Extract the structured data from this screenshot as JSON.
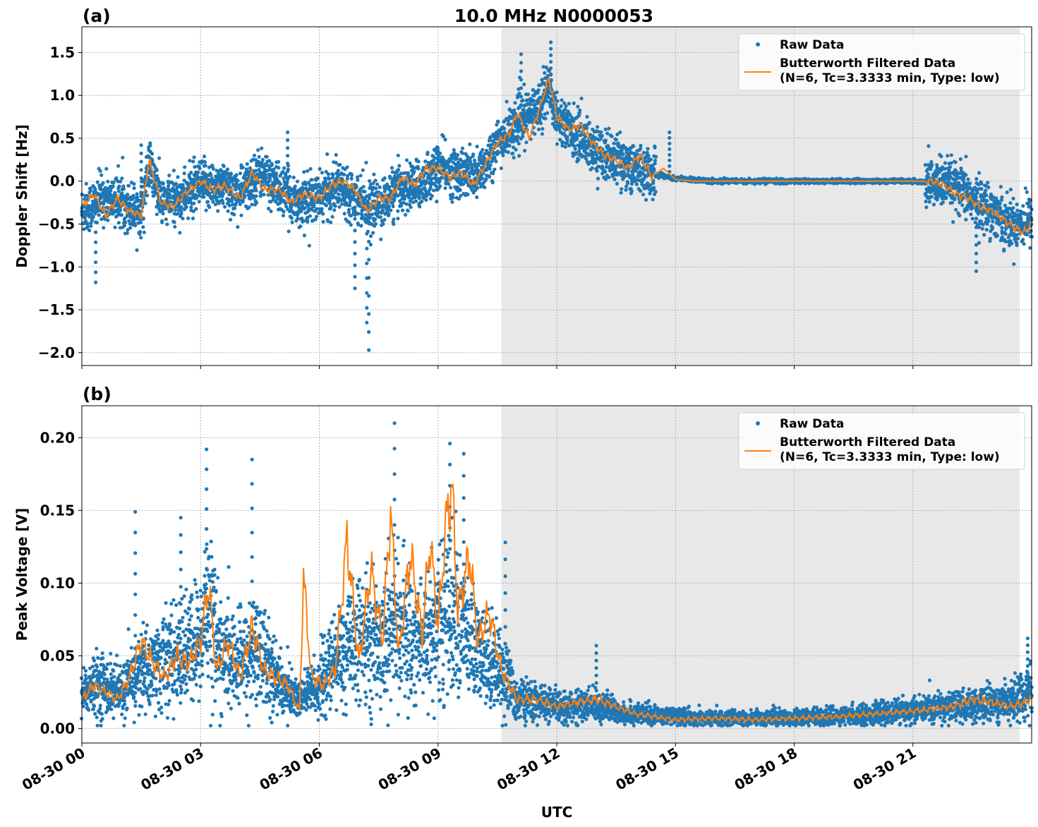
{
  "chart_data": [
    {
      "panel_label": "(a)",
      "title": "10.0 MHz N0000053",
      "type": "scatter",
      "ylabel": "Doppler Shift [Hz]",
      "ylim": [
        -2.15,
        1.8
      ],
      "yticks": [
        1.5,
        1.0,
        0.5,
        0.0,
        -0.5,
        -1.0,
        -1.5,
        -2.0
      ],
      "ytick_labels": [
        "1.5",
        "1.0",
        "0.5",
        "0.0",
        "−0.5",
        "−1.0",
        "−1.5",
        "−2.0"
      ],
      "xlim_hours": [
        0,
        24
      ],
      "shaded_region_hours": [
        10.6,
        23.7
      ],
      "grid": true,
      "legend": {
        "placement": "top-right",
        "entries": [
          "Raw Data",
          "Butterworth Filtered Data",
          "(N=6, Tc=3.3333 min, Type: low)"
        ]
      },
      "series": [
        {
          "name": "Raw Data",
          "kind": "scatter",
          "color": "#1f77b4",
          "x": [
            0,
            0.5,
            1,
            1.5,
            1.7,
            2,
            2.5,
            3,
            3.5,
            4,
            4.5,
            5,
            5.5,
            6,
            6.5,
            7,
            7.3,
            7.6,
            8,
            8.5,
            9,
            9.5,
            10,
            10.5,
            11,
            11.5,
            11.8,
            12,
            12.5,
            13,
            13.5,
            14,
            14.5,
            15,
            16,
            17,
            18,
            19,
            20,
            21,
            21.5,
            22,
            22.5,
            23,
            23.5,
            24
          ],
          "y": [
            -0.35,
            -0.2,
            -0.25,
            -0.35,
            0.2,
            -0.25,
            -0.2,
            -0.05,
            -0.05,
            -0.15,
            0.1,
            -0.1,
            -0.25,
            -0.2,
            -0.05,
            -0.2,
            -0.3,
            -0.25,
            -0.1,
            -0.05,
            0.15,
            0.1,
            0.05,
            0.45,
            0.65,
            0.85,
            1.1,
            0.75,
            0.55,
            0.35,
            0.25,
            0.15,
            0.08,
            0.03,
            0.0,
            0.0,
            0.0,
            0.0,
            0.0,
            0.0,
            -0.02,
            -0.05,
            -0.2,
            -0.35,
            -0.5,
            -0.45
          ],
          "outliers": [
            [
              0.35,
              -1.18
            ],
            [
              5.2,
              0.57
            ],
            [
              6.9,
              -1.25
            ],
            [
              7.25,
              -1.97
            ],
            [
              7.2,
              -1.65
            ],
            [
              11.85,
              1.62
            ],
            [
              11.1,
              1.48
            ],
            [
              14.85,
              0.57
            ],
            [
              22.6,
              -1.05
            ],
            [
              1.5,
              0.42
            ]
          ]
        },
        {
          "name": "Butterworth Filtered Data",
          "kind": "line",
          "color": "#ff7f0e",
          "x": [
            0,
            0.3,
            0.6,
            0.9,
            1.2,
            1.5,
            1.7,
            2.0,
            2.3,
            2.6,
            3.0,
            3.3,
            3.6,
            4.0,
            4.3,
            4.6,
            5.0,
            5.3,
            5.6,
            6.0,
            6.3,
            6.6,
            6.9,
            7.2,
            7.5,
            7.8,
            8.1,
            8.4,
            8.7,
            9.0,
            9.3,
            9.6,
            9.9,
            10.2,
            10.5,
            10.8,
            11.0,
            11.3,
            11.6,
            11.8,
            12.0,
            12.3,
            12.6,
            12.9,
            13.2,
            13.5,
            13.8,
            14.1,
            14.4,
            14.7,
            15.0,
            15.5,
            16.0,
            17.0,
            18.0,
            19.0,
            20.0,
            21.0,
            21.5,
            21.8,
            22.1,
            22.4,
            22.7,
            23.0,
            23.3,
            23.6,
            23.8,
            24.0
          ],
          "y": [
            -0.3,
            -0.15,
            -0.4,
            -0.2,
            -0.35,
            -0.4,
            0.25,
            -0.25,
            -0.3,
            -0.15,
            0.0,
            -0.1,
            -0.05,
            -0.2,
            0.1,
            -0.1,
            -0.1,
            -0.25,
            -0.15,
            -0.2,
            -0.05,
            0.0,
            -0.1,
            -0.35,
            -0.2,
            -0.2,
            0.05,
            -0.05,
            0.15,
            0.15,
            0.05,
            0.1,
            -0.05,
            0.2,
            0.45,
            0.55,
            0.8,
            0.5,
            0.9,
            1.2,
            0.75,
            0.6,
            0.65,
            0.45,
            0.3,
            0.25,
            0.15,
            0.3,
            0.05,
            0.15,
            0.02,
            0.0,
            0.0,
            0.0,
            0.0,
            0.0,
            0.0,
            0.0,
            0.0,
            -0.05,
            -0.15,
            -0.2,
            -0.3,
            -0.35,
            -0.45,
            -0.55,
            -0.6,
            -0.5
          ]
        }
      ]
    },
    {
      "panel_label": "(b)",
      "type": "scatter",
      "ylabel": "Peak Voltage [V]",
      "xlabel": "UTC",
      "ylim": [
        -0.01,
        0.222
      ],
      "yticks": [
        0.2,
        0.15,
        0.1,
        0.05,
        0.0
      ],
      "ytick_labels": [
        "0.20",
        "0.15",
        "0.10",
        "0.05",
        "0.00"
      ],
      "xlim_hours": [
        0,
        24
      ],
      "xticks_hours": [
        0,
        3,
        6,
        9,
        12,
        15,
        18,
        21
      ],
      "xtick_labels": [
        "08-30 00",
        "08-30 03",
        "08-30 06",
        "08-30 09",
        "08-30 12",
        "08-30 15",
        "08-30 18",
        "08-30 21"
      ],
      "shaded_region_hours": [
        10.6,
        23.7
      ],
      "grid": true,
      "legend": {
        "placement": "top-right",
        "entries": [
          "Raw Data",
          "Butterworth Filtered Data",
          "(N=6, Tc=3.3333 min, Type: low)"
        ]
      },
      "series": [
        {
          "name": "Raw Data",
          "kind": "scatter",
          "color": "#1f77b4",
          "x": [
            0,
            0.5,
            1,
            1.5,
            2,
            2.5,
            3,
            3.2,
            3.5,
            4,
            4.5,
            5,
            5.5,
            6,
            6.5,
            7,
            7.5,
            7.9,
            8.5,
            9,
            9.3,
            9.6,
            10,
            10.5,
            11,
            11.5,
            12,
            12.5,
            13,
            13.5,
            14,
            15,
            16,
            17,
            18,
            19,
            20,
            21,
            22,
            22.5,
            23,
            23.5,
            24
          ],
          "y": [
            0.025,
            0.03,
            0.025,
            0.04,
            0.045,
            0.05,
            0.06,
            0.09,
            0.05,
            0.045,
            0.055,
            0.03,
            0.02,
            0.03,
            0.05,
            0.06,
            0.06,
            0.07,
            0.06,
            0.07,
            0.08,
            0.07,
            0.05,
            0.045,
            0.02,
            0.018,
            0.015,
            0.015,
            0.016,
            0.012,
            0.01,
            0.008,
            0.007,
            0.007,
            0.008,
            0.008,
            0.01,
            0.012,
            0.015,
            0.015,
            0.018,
            0.02,
            0.025
          ],
          "outliers": [
            [
              1.35,
              0.149
            ],
            [
              3.15,
              0.192
            ],
            [
              4.3,
              0.185
            ],
            [
              7.9,
              0.21
            ],
            [
              9.3,
              0.196
            ],
            [
              9.65,
              0.189
            ],
            [
              10.7,
              0.128
            ],
            [
              13.0,
              0.057
            ],
            [
              23.9,
              0.062
            ],
            [
              2.5,
              0.145
            ]
          ]
        },
        {
          "name": "Butterworth Filtered Data",
          "kind": "line",
          "color": "#ff7f0e",
          "x": [
            0,
            0.3,
            0.6,
            0.9,
            1.2,
            1.5,
            1.8,
            2.1,
            2.4,
            2.7,
            3.0,
            3.2,
            3.4,
            3.7,
            4.0,
            4.3,
            4.6,
            4.9,
            5.2,
            5.5,
            5.6,
            5.8,
            6.1,
            6.4,
            6.7,
            7.0,
            7.3,
            7.6,
            7.8,
            8.0,
            8.3,
            8.6,
            8.8,
            9.0,
            9.2,
            9.35,
            9.5,
            9.8,
            10.0,
            10.3,
            10.6,
            11.0,
            11.5,
            12.0,
            12.5,
            13.0,
            13.5,
            14.0,
            14.5,
            15.0,
            16.0,
            17.0,
            18.0,
            19.0,
            20.0,
            21.0,
            22.0,
            22.5,
            23.0,
            23.5,
            24.0
          ],
          "y": [
            0.02,
            0.03,
            0.025,
            0.02,
            0.035,
            0.06,
            0.045,
            0.035,
            0.05,
            0.045,
            0.06,
            0.1,
            0.04,
            0.06,
            0.035,
            0.07,
            0.04,
            0.035,
            0.03,
            0.012,
            0.105,
            0.035,
            0.03,
            0.04,
            0.13,
            0.045,
            0.11,
            0.06,
            0.15,
            0.05,
            0.12,
            0.065,
            0.13,
            0.07,
            0.14,
            0.168,
            0.08,
            0.12,
            0.06,
            0.08,
            0.04,
            0.02,
            0.02,
            0.015,
            0.018,
            0.02,
            0.015,
            0.01,
            0.008,
            0.006,
            0.007,
            0.006,
            0.007,
            0.008,
            0.01,
            0.012,
            0.015,
            0.02,
            0.018,
            0.015,
            0.02
          ]
        }
      ]
    }
  ]
}
